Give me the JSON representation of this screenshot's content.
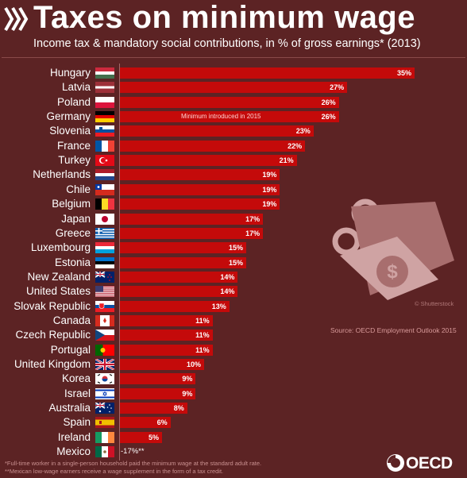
{
  "header": {
    "title": "Taxes on minimum wage",
    "subtitle": "Income tax & mandatory social contributions, in % of gross earnings* (2013)"
  },
  "colors": {
    "background": "#5c2324",
    "bar": "#c40a0a",
    "text": "#ffffff"
  },
  "chart_data": {
    "type": "bar",
    "orientation": "horizontal",
    "title": "Taxes on minimum wage",
    "subtitle": "Income tax & mandatory social contributions, in % of gross earnings* (2013)",
    "xlabel": "",
    "ylabel": "",
    "xlim": [
      -17,
      35
    ],
    "grid": false,
    "legend": "none",
    "categories": [
      "Hungary",
      "Latvia",
      "Poland",
      "Germany",
      "Slovenia",
      "France",
      "Turkey",
      "Netherlands",
      "Chile",
      "Belgium",
      "Japan",
      "Greece",
      "Luxembourg",
      "Estonia",
      "New Zealand",
      "United States",
      "Slovak Republic",
      "Canada",
      "Czech Republic",
      "Portugal",
      "United Kingdom",
      "Korea",
      "Israel",
      "Australia",
      "Spain",
      "Ireland",
      "Mexico"
    ],
    "values": [
      35,
      27,
      26,
      26,
      23,
      22,
      21,
      19,
      19,
      19,
      17,
      17,
      15,
      15,
      14,
      14,
      13,
      11,
      11,
      11,
      10,
      9,
      9,
      8,
      6,
      5,
      -17
    ],
    "value_labels": [
      "35%",
      "27%",
      "26%",
      "26%",
      "23%",
      "22%",
      "21%",
      "19%",
      "19%",
      "19%",
      "17%",
      "17%",
      "15%",
      "15%",
      "14%",
      "14%",
      "13%",
      "11%",
      "11%",
      "11%",
      "10%",
      "9%",
      "9%",
      "8%",
      "6%",
      "5%",
      "-17%**"
    ],
    "flags": [
      "hungary-flag",
      "latvia-flag",
      "poland-flag",
      "germany-flag",
      "slovenia-flag",
      "france-flag",
      "turkey-flag",
      "netherlands-flag",
      "chile-flag",
      "belgium-flag",
      "japan-flag",
      "greece-flag",
      "luxembourg-flag",
      "estonia-flag",
      "new-zealand-flag",
      "united-states-flag",
      "slovak-republic-flag",
      "canada-flag",
      "czech-republic-flag",
      "portugal-flag",
      "united-kingdom-flag",
      "korea-flag",
      "israel-flag",
      "australia-flag",
      "spain-flag",
      "ireland-flag",
      "mexico-flag"
    ],
    "annotations": [
      {
        "category": "Germany",
        "text": "Minimum introduced in 2015"
      }
    ]
  },
  "decor": {
    "illustration": "scissors-cutting-dollar-bill-icon",
    "credit": "© Shutterstock"
  },
  "source": "Source: OECD Employment Outlook 2015",
  "footnotes": [
    "*Full-time worker in a single-person household paid the minimum wage at the standard adult rate.",
    "**Mexican low-wage earners receive a wage supplement in the form of a tax credit."
  ],
  "brand": {
    "logo_text": "OECD"
  }
}
